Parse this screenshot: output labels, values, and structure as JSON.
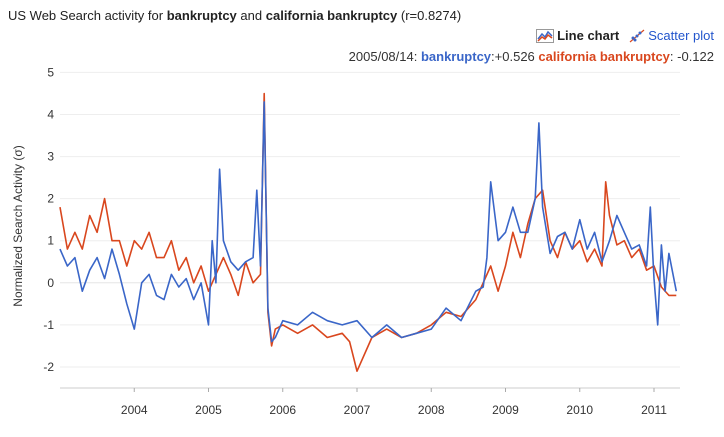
{
  "header": {
    "title_prefix": "US Web Search activity for",
    "term1": "bankruptcy",
    "and_word": "and",
    "term2": "california bankruptcy",
    "corr": "(r=0.8274)"
  },
  "view_toggle": {
    "line_label": "Line chart",
    "scatter_label": "Scatter plot",
    "active": "line"
  },
  "readout": {
    "date": "2005/08/14:",
    "s1_name": "bankruptcy",
    "s1_value": ":+0.526",
    "s2_name": "california bankruptcy",
    "s2_value": ": -0.122"
  },
  "chart_data": {
    "type": "line",
    "ylabel": "Normalized Search Activity (σ)",
    "xlabel": "",
    "ylim": [
      -2.5,
      5.2
    ],
    "xlim": [
      2003.0,
      2011.35
    ],
    "y_ticks": [
      5,
      4,
      3,
      2,
      1,
      0,
      -1,
      -2
    ],
    "x_ticks": [
      2004,
      2005,
      2006,
      2007,
      2008,
      2009,
      2010,
      2011
    ],
    "grid": "horizontal",
    "colors": {
      "bankruptcy": "#3a66c8",
      "california bankruptcy": "#d9471e"
    },
    "series": [
      {
        "name": "bankruptcy",
        "x": [
          2003.0,
          2003.1,
          2003.2,
          2003.3,
          2003.4,
          2003.5,
          2003.6,
          2003.7,
          2003.8,
          2003.9,
          2004.0,
          2004.1,
          2004.2,
          2004.3,
          2004.4,
          2004.5,
          2004.6,
          2004.7,
          2004.8,
          2004.9,
          2005.0,
          2005.05,
          2005.1,
          2005.15,
          2005.2,
          2005.3,
          2005.4,
          2005.5,
          2005.6,
          2005.65,
          2005.7,
          2005.75,
          2005.8,
          2005.85,
          2005.9,
          2006.0,
          2006.2,
          2006.4,
          2006.6,
          2006.8,
          2007.0,
          2007.2,
          2007.4,
          2007.6,
          2007.8,
          2008.0,
          2008.2,
          2008.4,
          2008.6,
          2008.7,
          2008.75,
          2008.8,
          2008.9,
          2009.0,
          2009.1,
          2009.2,
          2009.3,
          2009.4,
          2009.45,
          2009.5,
          2009.6,
          2009.7,
          2009.8,
          2009.9,
          2010.0,
          2010.1,
          2010.2,
          2010.3,
          2010.4,
          2010.5,
          2010.6,
          2010.7,
          2010.8,
          2010.9,
          2010.95,
          2011.0,
          2011.05,
          2011.1,
          2011.15,
          2011.2,
          2011.3
        ],
        "y": [
          0.8,
          0.4,
          0.6,
          -0.2,
          0.3,
          0.6,
          0.1,
          0.8,
          0.2,
          -0.5,
          -1.1,
          0.0,
          0.2,
          -0.3,
          -0.4,
          0.2,
          -0.1,
          0.1,
          -0.4,
          0.0,
          -1.0,
          1.0,
          0.0,
          2.7,
          1.0,
          0.5,
          0.3,
          0.5,
          0.6,
          2.2,
          0.4,
          4.3,
          -0.6,
          -1.4,
          -1.3,
          -0.9,
          -1.0,
          -0.7,
          -0.9,
          -1.0,
          -0.9,
          -1.3,
          -1.0,
          -1.3,
          -1.2,
          -1.1,
          -0.6,
          -0.9,
          -0.2,
          -0.1,
          0.6,
          2.4,
          1.0,
          1.2,
          1.8,
          1.2,
          1.2,
          2.0,
          3.8,
          1.8,
          0.7,
          1.1,
          1.2,
          0.8,
          1.5,
          0.8,
          1.2,
          0.5,
          1.0,
          1.6,
          1.2,
          0.8,
          0.9,
          0.4,
          1.8,
          0.1,
          -1.0,
          0.9,
          -0.2,
          0.7,
          -0.2
        ]
      },
      {
        "name": "california bankruptcy",
        "x": [
          2003.0,
          2003.1,
          2003.2,
          2003.3,
          2003.4,
          2003.5,
          2003.6,
          2003.7,
          2003.8,
          2003.9,
          2004.0,
          2004.1,
          2004.2,
          2004.3,
          2004.4,
          2004.5,
          2004.6,
          2004.7,
          2004.8,
          2004.9,
          2005.0,
          2005.1,
          2005.2,
          2005.3,
          2005.4,
          2005.5,
          2005.6,
          2005.7,
          2005.75,
          2005.8,
          2005.85,
          2005.9,
          2006.0,
          2006.2,
          2006.4,
          2006.6,
          2006.8,
          2006.9,
          2007.0,
          2007.2,
          2007.4,
          2007.6,
          2007.8,
          2008.0,
          2008.2,
          2008.4,
          2008.6,
          2008.7,
          2008.8,
          2008.9,
          2009.0,
          2009.1,
          2009.2,
          2009.3,
          2009.4,
          2009.5,
          2009.6,
          2009.7,
          2009.8,
          2009.9,
          2010.0,
          2010.1,
          2010.2,
          2010.3,
          2010.35,
          2010.4,
          2010.5,
          2010.6,
          2010.7,
          2010.8,
          2010.9,
          2011.0,
          2011.1,
          2011.2,
          2011.3
        ],
        "y": [
          1.8,
          0.8,
          1.2,
          0.8,
          1.6,
          1.2,
          2.0,
          1.0,
          1.0,
          0.4,
          1.0,
          0.8,
          1.2,
          0.6,
          0.6,
          1.0,
          0.3,
          0.6,
          0.0,
          0.4,
          -0.2,
          0.2,
          0.6,
          0.2,
          -0.3,
          0.5,
          0.0,
          0.2,
          4.5,
          -0.7,
          -1.5,
          -1.1,
          -1.0,
          -1.2,
          -1.0,
          -1.3,
          -1.2,
          -1.4,
          -2.1,
          -1.3,
          -1.1,
          -1.3,
          -1.2,
          -1.0,
          -0.7,
          -0.8,
          -0.4,
          0.0,
          0.4,
          -0.2,
          0.4,
          1.2,
          0.6,
          1.4,
          2.0,
          2.2,
          1.0,
          0.6,
          1.2,
          0.8,
          1.0,
          0.5,
          0.8,
          0.4,
          2.4,
          1.6,
          0.9,
          1.0,
          0.6,
          0.8,
          0.3,
          0.4,
          -0.1,
          -0.3,
          -0.3
        ]
      }
    ]
  }
}
